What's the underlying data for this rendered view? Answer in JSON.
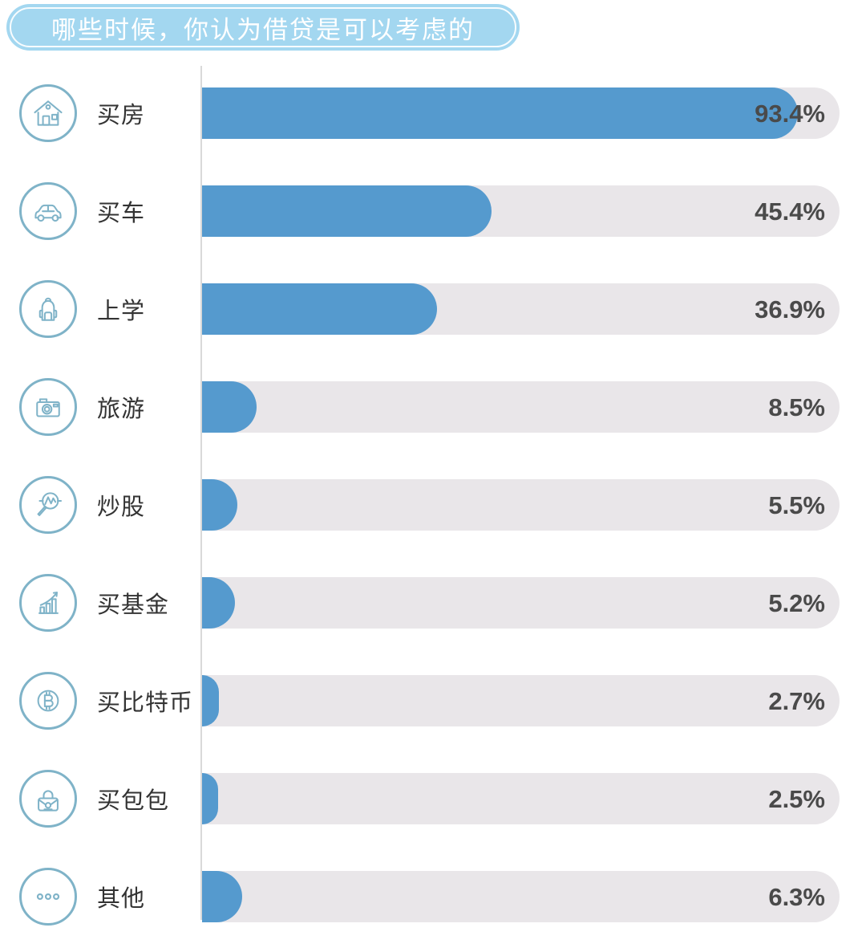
{
  "title": "哪些时候，你认为借贷是可以考虑的",
  "colors": {
    "bar_fill": "#559ACE",
    "bar_track": "#E9E6E9",
    "title_background": "#A3D7F0",
    "title_text": "#FFFFFF",
    "icon_stroke": "#7FB3C8",
    "value_text": "#4A4A4A",
    "category_text": "#333333",
    "axis_line": "#D9D9D9"
  },
  "chart_data": {
    "type": "bar",
    "orientation": "horizontal",
    "title": "哪些时候，你认为借贷是可以考虑的",
    "categories": [
      "买房",
      "买车",
      "上学",
      "旅游",
      "炒股",
      "买基金",
      "买比特币",
      "买包包",
      "其他"
    ],
    "values": [
      93.4,
      45.4,
      36.9,
      8.5,
      5.5,
      5.2,
      2.7,
      2.5,
      6.3
    ],
    "value_labels": [
      "93.4%",
      "45.4%",
      "36.9%",
      "8.5%",
      "5.5%",
      "5.2%",
      "2.7%",
      "2.5%",
      "6.3%"
    ],
    "icons": [
      "house-icon",
      "car-icon",
      "backpack-icon",
      "camera-icon",
      "stock-magnifier-icon",
      "fund-chart-icon",
      "bitcoin-icon",
      "handbag-icon",
      "ellipsis-icon"
    ],
    "xlim": [
      0,
      100
    ],
    "grid": false,
    "legend": false,
    "value_label_position": "inside-track-right"
  }
}
